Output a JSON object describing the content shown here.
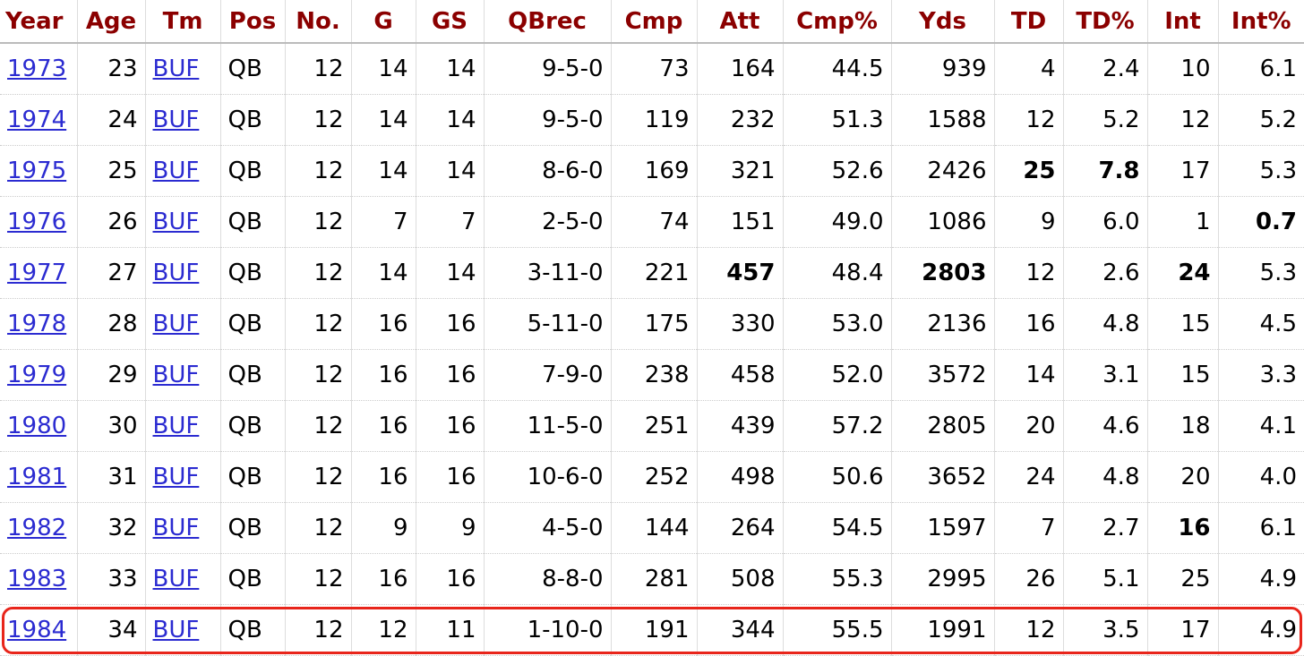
{
  "table": {
    "headers": [
      "Year",
      "Age",
      "Tm",
      "Pos",
      "No.",
      "G",
      "GS",
      "QBrec",
      "Cmp",
      "Att",
      "Cmp%",
      "Yds",
      "TD",
      "TD%",
      "Int",
      "Int%"
    ],
    "rows": [
      [
        "1973",
        "23",
        "BUF",
        "QB",
        "12",
        "14",
        "14",
        "9-5-0",
        "73",
        "164",
        "44.5",
        "939",
        "4",
        "2.4",
        "10",
        "6.1"
      ],
      [
        "1974",
        "24",
        "BUF",
        "QB",
        "12",
        "14",
        "14",
        "9-5-0",
        "119",
        "232",
        "51.3",
        "1588",
        "12",
        "5.2",
        "12",
        "5.2"
      ],
      [
        "1975",
        "25",
        "BUF",
        "QB",
        "12",
        "14",
        "14",
        "8-6-0",
        "169",
        "321",
        "52.6",
        "2426",
        "25",
        "7.8",
        "17",
        "5.3"
      ],
      [
        "1976",
        "26",
        "BUF",
        "QB",
        "12",
        "7",
        "7",
        "2-5-0",
        "74",
        "151",
        "49.0",
        "1086",
        "9",
        "6.0",
        "1",
        "0.7"
      ],
      [
        "1977",
        "27",
        "BUF",
        "QB",
        "12",
        "14",
        "14",
        "3-11-0",
        "221",
        "457",
        "48.4",
        "2803",
        "12",
        "2.6",
        "24",
        "5.3"
      ],
      [
        "1978",
        "28",
        "BUF",
        "QB",
        "12",
        "16",
        "16",
        "5-11-0",
        "175",
        "330",
        "53.0",
        "2136",
        "16",
        "4.8",
        "15",
        "4.5"
      ],
      [
        "1979",
        "29",
        "BUF",
        "QB",
        "12",
        "16",
        "16",
        "7-9-0",
        "238",
        "458",
        "52.0",
        "3572",
        "14",
        "3.1",
        "15",
        "3.3"
      ],
      [
        "1980",
        "30",
        "BUF",
        "QB",
        "12",
        "16",
        "16",
        "11-5-0",
        "251",
        "439",
        "57.2",
        "2805",
        "20",
        "4.6",
        "18",
        "4.1"
      ],
      [
        "1981",
        "31",
        "BUF",
        "QB",
        "12",
        "16",
        "16",
        "10-6-0",
        "252",
        "498",
        "50.6",
        "3652",
        "24",
        "4.8",
        "20",
        "4.0"
      ],
      [
        "1982",
        "32",
        "BUF",
        "QB",
        "12",
        "9",
        "9",
        "4-5-0",
        "144",
        "264",
        "54.5",
        "1597",
        "7",
        "2.7",
        "16",
        "6.1"
      ],
      [
        "1983",
        "33",
        "BUF",
        "QB",
        "12",
        "16",
        "16",
        "8-8-0",
        "281",
        "508",
        "55.3",
        "2995",
        "26",
        "5.1",
        "25",
        "4.9"
      ],
      [
        "1984",
        "34",
        "BUF",
        "QB",
        "12",
        "12",
        "11",
        "1-10-0",
        "191",
        "344",
        "55.5",
        "1991",
        "12",
        "3.5",
        "17",
        "4.9"
      ]
    ],
    "bold": [
      [
        2,
        12
      ],
      [
        2,
        13
      ],
      [
        3,
        15
      ],
      [
        4,
        9
      ],
      [
        4,
        11
      ],
      [
        4,
        14
      ],
      [
        9,
        14
      ]
    ],
    "highlight_row": 11
  }
}
